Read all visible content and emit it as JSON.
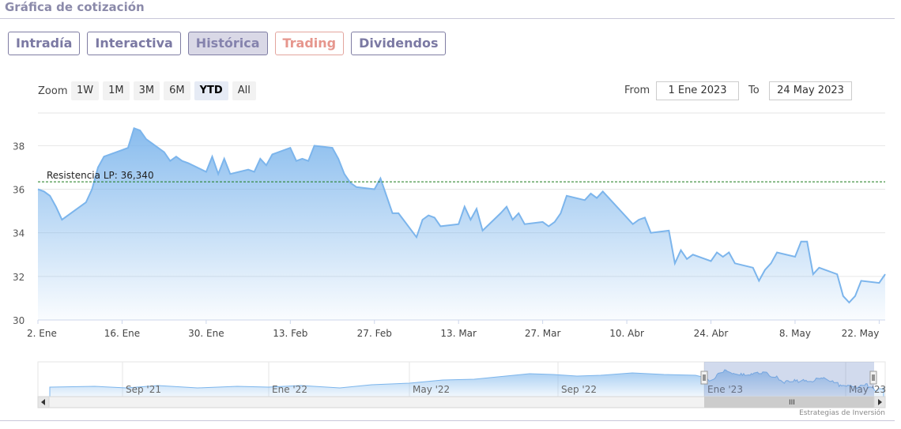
{
  "section": {
    "title": "Gráfica de cotización"
  },
  "tabs": [
    {
      "label": "Intradía",
      "state": "normal"
    },
    {
      "label": "Interactiva",
      "state": "normal"
    },
    {
      "label": "Histórica",
      "state": "active"
    },
    {
      "label": "Trading",
      "state": "highlight"
    },
    {
      "label": "Dividendos",
      "state": "normal"
    }
  ],
  "zoom": {
    "label": "Zoom",
    "buttons": [
      "1W",
      "1M",
      "3M",
      "6M",
      "YTD",
      "All"
    ],
    "selected": "YTD"
  },
  "range": {
    "from_label": "From",
    "from_value": "1 Ene 2023",
    "to_label": "To",
    "to_value": "24 May 2023"
  },
  "credits": "Estrategias de Inversión",
  "colors": {
    "line": "#7cb5ec",
    "resistance": "#1a7a1a",
    "navigator_mask": "rgba(102,133,194,0.3)"
  },
  "chart_data": {
    "type": "area",
    "title": "",
    "xlabel": "",
    "ylabel": "",
    "ylim": [
      30,
      39.5
    ],
    "y_ticks": [
      "30",
      "32",
      "34",
      "36",
      "38"
    ],
    "x_ticks": [
      "2. Ene",
      "16. Ene",
      "30. Ene",
      "13. Feb",
      "27. Feb",
      "13. Mar",
      "27. Mar",
      "10. Abr",
      "24. Abr",
      "8. May",
      "22. May"
    ],
    "grid": true,
    "resistance": {
      "label": "Resistencia LP: 36,340",
      "value": 36.34
    },
    "series": [
      {
        "values": [
          {
            "x": "2023-01-02",
            "y": 36.0
          },
          {
            "x": "2023-01-03",
            "y": 35.9
          },
          {
            "x": "2023-01-04",
            "y": 35.7
          },
          {
            "x": "2023-01-05",
            "y": 35.2
          },
          {
            "x": "2023-01-06",
            "y": 34.6
          },
          {
            "x": "2023-01-09",
            "y": 35.2
          },
          {
            "x": "2023-01-10",
            "y": 35.4
          },
          {
            "x": "2023-01-11",
            "y": 36.0
          },
          {
            "x": "2023-01-12",
            "y": 37.0
          },
          {
            "x": "2023-01-13",
            "y": 37.5
          },
          {
            "x": "2023-01-16",
            "y": 37.8
          },
          {
            "x": "2023-01-17",
            "y": 37.9
          },
          {
            "x": "2023-01-18",
            "y": 38.8
          },
          {
            "x": "2023-01-19",
            "y": 38.7
          },
          {
            "x": "2023-01-20",
            "y": 38.3
          },
          {
            "x": "2023-01-23",
            "y": 37.7
          },
          {
            "x": "2023-01-24",
            "y": 37.3
          },
          {
            "x": "2023-01-25",
            "y": 37.5
          },
          {
            "x": "2023-01-26",
            "y": 37.3
          },
          {
            "x": "2023-01-27",
            "y": 37.2
          },
          {
            "x": "2023-01-30",
            "y": 36.8
          },
          {
            "x": "2023-01-31",
            "y": 37.5
          },
          {
            "x": "2023-02-01",
            "y": 36.7
          },
          {
            "x": "2023-02-02",
            "y": 37.4
          },
          {
            "x": "2023-02-03",
            "y": 36.7
          },
          {
            "x": "2023-02-06",
            "y": 36.9
          },
          {
            "x": "2023-02-07",
            "y": 36.8
          },
          {
            "x": "2023-02-08",
            "y": 37.4
          },
          {
            "x": "2023-02-09",
            "y": 37.1
          },
          {
            "x": "2023-02-10",
            "y": 37.6
          },
          {
            "x": "2023-02-13",
            "y": 37.9
          },
          {
            "x": "2023-02-14",
            "y": 37.3
          },
          {
            "x": "2023-02-15",
            "y": 37.4
          },
          {
            "x": "2023-02-16",
            "y": 37.3
          },
          {
            "x": "2023-02-17",
            "y": 38.0
          },
          {
            "x": "2023-02-20",
            "y": 37.9
          },
          {
            "x": "2023-02-21",
            "y": 37.4
          },
          {
            "x": "2023-02-22",
            "y": 36.7
          },
          {
            "x": "2023-02-23",
            "y": 36.3
          },
          {
            "x": "2023-02-24",
            "y": 36.1
          },
          {
            "x": "2023-02-27",
            "y": 36.0
          },
          {
            "x": "2023-02-28",
            "y": 36.5
          },
          {
            "x": "2023-03-01",
            "y": 35.7
          },
          {
            "x": "2023-03-02",
            "y": 34.9
          },
          {
            "x": "2023-03-03",
            "y": 34.9
          },
          {
            "x": "2023-03-06",
            "y": 33.8
          },
          {
            "x": "2023-03-07",
            "y": 34.6
          },
          {
            "x": "2023-03-08",
            "y": 34.8
          },
          {
            "x": "2023-03-09",
            "y": 34.7
          },
          {
            "x": "2023-03-10",
            "y": 34.3
          },
          {
            "x": "2023-03-13",
            "y": 34.4
          },
          {
            "x": "2023-03-14",
            "y": 35.2
          },
          {
            "x": "2023-03-15",
            "y": 34.6
          },
          {
            "x": "2023-03-16",
            "y": 35.1
          },
          {
            "x": "2023-03-17",
            "y": 34.1
          },
          {
            "x": "2023-03-20",
            "y": 34.9
          },
          {
            "x": "2023-03-21",
            "y": 35.2
          },
          {
            "x": "2023-03-22",
            "y": 34.6
          },
          {
            "x": "2023-03-23",
            "y": 34.9
          },
          {
            "x": "2023-03-24",
            "y": 34.4
          },
          {
            "x": "2023-03-27",
            "y": 34.5
          },
          {
            "x": "2023-03-28",
            "y": 34.3
          },
          {
            "x": "2023-03-29",
            "y": 34.5
          },
          {
            "x": "2023-03-30",
            "y": 34.9
          },
          {
            "x": "2023-03-31",
            "y": 35.7
          },
          {
            "x": "2023-04-03",
            "y": 35.5
          },
          {
            "x": "2023-04-04",
            "y": 35.8
          },
          {
            "x": "2023-04-05",
            "y": 35.6
          },
          {
            "x": "2023-04-06",
            "y": 35.9
          },
          {
            "x": "2023-04-11",
            "y": 34.4
          },
          {
            "x": "2023-04-12",
            "y": 34.6
          },
          {
            "x": "2023-04-13",
            "y": 34.7
          },
          {
            "x": "2023-04-14",
            "y": 34.0
          },
          {
            "x": "2023-04-17",
            "y": 34.1
          },
          {
            "x": "2023-04-18",
            "y": 32.6
          },
          {
            "x": "2023-04-19",
            "y": 33.2
          },
          {
            "x": "2023-04-20",
            "y": 32.8
          },
          {
            "x": "2023-04-21",
            "y": 33.0
          },
          {
            "x": "2023-04-24",
            "y": 32.7
          },
          {
            "x": "2023-04-25",
            "y": 33.1
          },
          {
            "x": "2023-04-26",
            "y": 32.9
          },
          {
            "x": "2023-04-27",
            "y": 33.1
          },
          {
            "x": "2023-04-28",
            "y": 32.6
          },
          {
            "x": "2023-05-01",
            "y": 32.4
          },
          {
            "x": "2023-05-02",
            "y": 31.8
          },
          {
            "x": "2023-05-03",
            "y": 32.3
          },
          {
            "x": "2023-05-04",
            "y": 32.6
          },
          {
            "x": "2023-05-05",
            "y": 33.1
          },
          {
            "x": "2023-05-08",
            "y": 32.9
          },
          {
            "x": "2023-05-09",
            "y": 33.6
          },
          {
            "x": "2023-05-10",
            "y": 33.6
          },
          {
            "x": "2023-05-11",
            "y": 32.1
          },
          {
            "x": "2023-05-12",
            "y": 32.4
          },
          {
            "x": "2023-05-15",
            "y": 32.1
          },
          {
            "x": "2023-05-16",
            "y": 31.1
          },
          {
            "x": "2023-05-17",
            "y": 30.8
          },
          {
            "x": "2023-05-18",
            "y": 31.1
          },
          {
            "x": "2023-05-19",
            "y": 31.8
          },
          {
            "x": "2023-05-22",
            "y": 31.7
          },
          {
            "x": "2023-05-23",
            "y": 32.1
          }
        ]
      }
    ],
    "navigator": {
      "labels": [
        "Sep '21",
        "Ene '22",
        "May '22",
        "Sep '22",
        "Ene '23",
        "May '23"
      ]
    }
  }
}
